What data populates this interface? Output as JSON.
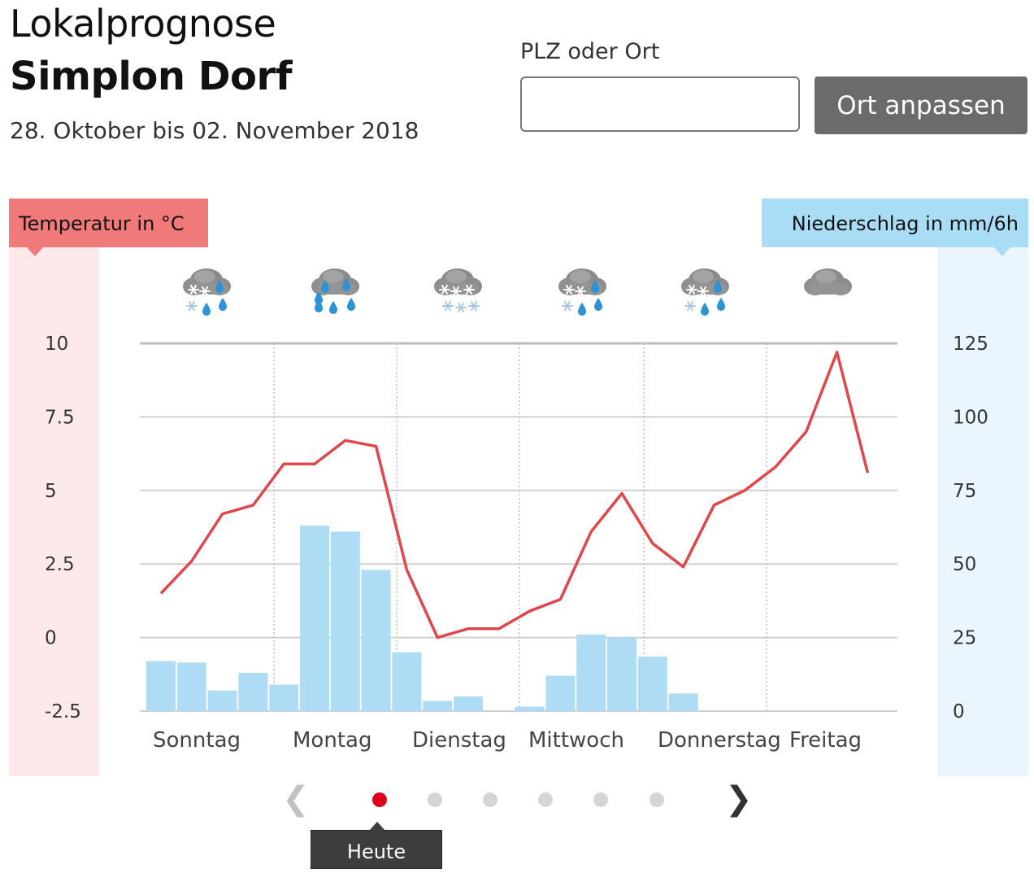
{
  "header": {
    "title": "Lokalprognose",
    "location": "Simplon Dorf",
    "date_range": "28. Oktober bis 02. November 2018"
  },
  "search": {
    "label": "PLZ oder Ort",
    "value": "",
    "placeholder": "",
    "button_label": "Ort anpassen"
  },
  "pager": {
    "tooltip": "Heute",
    "prev_icon": "chevron-left-icon",
    "next_icon": "chevron-right-icon",
    "dot_count": 6,
    "active_dot": 0
  },
  "colors": {
    "temperature_line": "#e0474c",
    "precipitation_bar": "#addcf4",
    "temp_band": "#fde9e9",
    "prec_band": "#eaf5fd"
  },
  "chart_data": {
    "type": "bar+line",
    "temp_axis_label": "Temperatur in °C",
    "precip_axis_label": "Niederschlag in mm/6h",
    "temp_ticks": [
      "10",
      "7.5",
      "5",
      "2.5",
      "0",
      "-2.5"
    ],
    "precip_ticks": [
      "125",
      "100",
      "75",
      "50",
      "25",
      "0"
    ],
    "temp_range": [
      -2.5,
      10
    ],
    "precip_range": [
      0,
      125
    ],
    "grid": true,
    "days": [
      "Sonntag",
      "Montag",
      "Dienstag",
      "Mittwoch",
      "Donnerstag",
      "Freitag"
    ],
    "day_icons": [
      "snow-rain-icon",
      "rain-icon",
      "snow-icon",
      "snow-rain-icon",
      "snow-rain-icon",
      "cloud-icon"
    ],
    "temperature": [
      1.5,
      2.6,
      4.2,
      4.5,
      5.9,
      5.9,
      6.7,
      6.5,
      2.3,
      0.0,
      0.3,
      0.3,
      0.9,
      1.3,
      3.6,
      4.9,
      3.2,
      2.4,
      4.5,
      5.0,
      5.8,
      7.0,
      9.7,
      5.6
    ],
    "precipitation": [
      17,
      16.5,
      7,
      13,
      9,
      63,
      61,
      48,
      20,
      3.5,
      5,
      0,
      1.5,
      12,
      26,
      25,
      18.5,
      6,
      0,
      0,
      0,
      0,
      0,
      0
    ]
  }
}
